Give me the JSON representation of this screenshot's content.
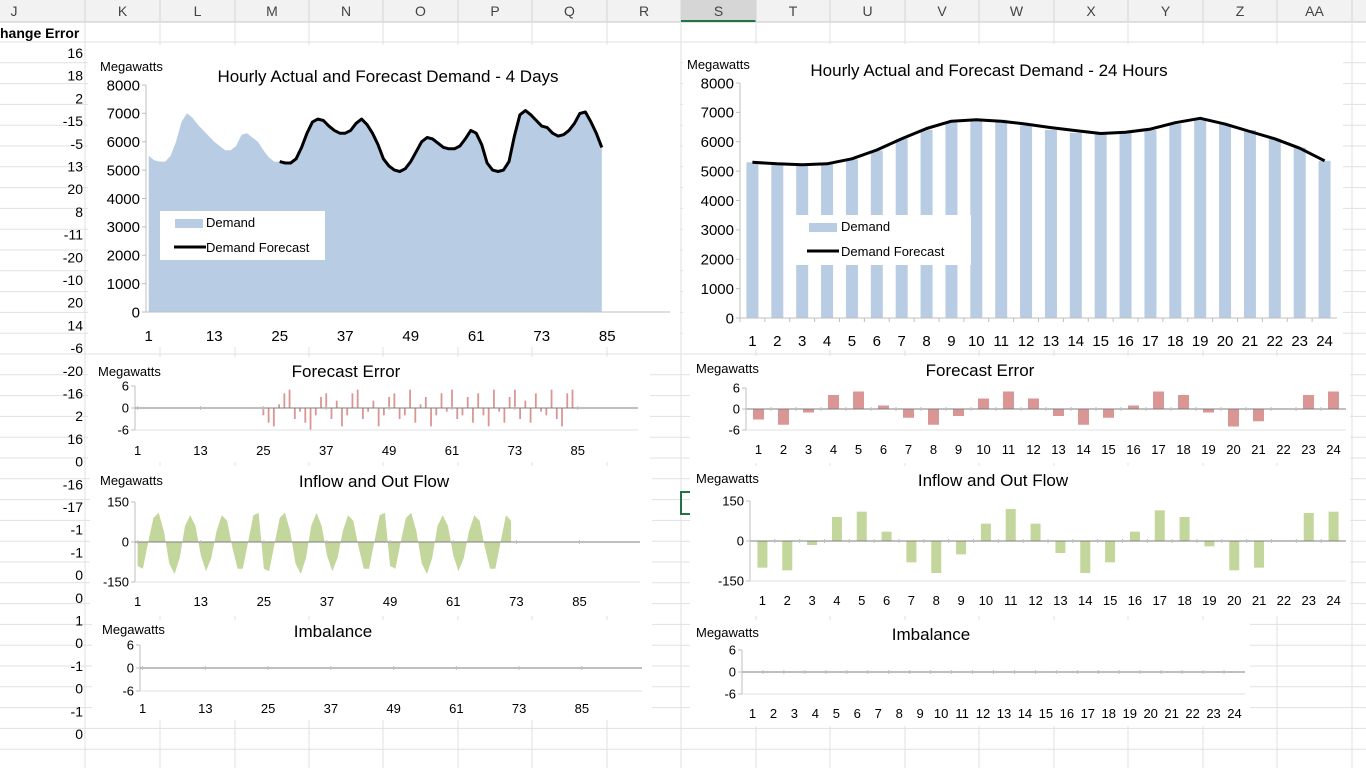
{
  "sheet": {
    "columns": [
      "J",
      "K",
      "L",
      "M",
      "N",
      "O",
      "P",
      "Q",
      "R",
      "S",
      "T",
      "U",
      "V",
      "W",
      "X",
      "Y",
      "Z",
      "AA"
    ],
    "active_column": "S",
    "header_cell": "hange Error",
    "column_values": [
      "16",
      "18",
      "2",
      "-15",
      "-5",
      "13",
      "20",
      "8",
      "-11",
      "-20",
      "-10",
      "20",
      "14",
      "-6",
      "-20",
      "-16",
      "2",
      "16",
      "0",
      "-16",
      "-17",
      "-1",
      "-1",
      "0",
      "0",
      "1",
      "0",
      "-1",
      "0",
      "-1",
      "0"
    ],
    "colors": {
      "grid": "#e1e1e1",
      "header_bg": "#f2f2f2",
      "header_text": "#444444",
      "active_header": "#d6d6d6",
      "active_accent": "#217346"
    }
  },
  "charts": {
    "demand4d": {
      "title": "Hourly Actual and Forecast Demand - 4 Days",
      "unit": "Megawatts",
      "legend": {
        "area": "Demand",
        "line": "Demand Forecast"
      },
      "y_ticks": [
        "8000",
        "7000",
        "6000",
        "5000",
        "4000",
        "3000",
        "2000",
        "1000",
        "0"
      ],
      "x_ticks": [
        "1",
        "13",
        "25",
        "37",
        "49",
        "61",
        "73",
        "85"
      ]
    },
    "demand24": {
      "title": "Hourly Actual and Forecast Demand - 24 Hours",
      "unit": "Megawatts",
      "legend": {
        "bar": "Demand",
        "line": "Demand Forecast"
      },
      "y_ticks": [
        "8000",
        "7000",
        "6000",
        "5000",
        "4000",
        "3000",
        "2000",
        "1000",
        "0"
      ],
      "x_ticks": [
        "1",
        "2",
        "3",
        "4",
        "5",
        "6",
        "7",
        "8",
        "9",
        "10",
        "11",
        "12",
        "13",
        "14",
        "15",
        "16",
        "17",
        "18",
        "19",
        "20",
        "21",
        "22",
        "23",
        "24"
      ]
    },
    "error4d": {
      "title": "Forecast Error",
      "unit": "Megawatts",
      "y_ticks": [
        "6",
        "0",
        "-6"
      ],
      "x_ticks": [
        "1",
        "13",
        "25",
        "37",
        "49",
        "61",
        "73",
        "85"
      ]
    },
    "error24": {
      "title": "Forecast Error",
      "unit": "Megawatts",
      "y_ticks": [
        "6",
        "0",
        "-6"
      ],
      "x_ticks": [
        "1",
        "2",
        "3",
        "4",
        "5",
        "6",
        "7",
        "8",
        "9",
        "10",
        "11",
        "12",
        "13",
        "14",
        "15",
        "16",
        "17",
        "18",
        "19",
        "20",
        "21",
        "22",
        "23",
        "24"
      ]
    },
    "flow4d": {
      "title": "Inflow and Out Flow",
      "unit": "Megawatts",
      "y_ticks": [
        "150",
        "0",
        "-150"
      ],
      "x_ticks": [
        "1",
        "13",
        "25",
        "37",
        "49",
        "61",
        "73",
        "85"
      ]
    },
    "flow24": {
      "title": "Inflow and Out Flow",
      "unit": "Megawatts",
      "y_ticks": [
        "150",
        "0",
        "-150"
      ],
      "x_ticks": [
        "1",
        "2",
        "3",
        "4",
        "5",
        "6",
        "7",
        "8",
        "9",
        "10",
        "11",
        "12",
        "13",
        "14",
        "15",
        "16",
        "17",
        "18",
        "19",
        "20",
        "21",
        "22",
        "23",
        "24"
      ]
    },
    "imb4d": {
      "title": "Imbalance",
      "unit": "Megawatts",
      "y_ticks": [
        "6",
        "0",
        "-6"
      ],
      "x_ticks": [
        "1",
        "13",
        "25",
        "37",
        "49",
        "61",
        "73",
        "85"
      ]
    },
    "imb24": {
      "title": "Imbalance",
      "unit": "Megawatts",
      "y_ticks": [
        "6",
        "0",
        "-6"
      ],
      "x_ticks": [
        "1",
        "2",
        "3",
        "4",
        "5",
        "6",
        "7",
        "8",
        "9",
        "10",
        "11",
        "12",
        "13",
        "14",
        "15",
        "16",
        "17",
        "18",
        "19",
        "20",
        "21",
        "22",
        "23",
        "24"
      ]
    }
  },
  "chart_data": [
    {
      "type": "area",
      "title": "Hourly Actual and Forecast Demand - 4 Days",
      "ylabel": "Megawatts",
      "ylim": [
        0,
        8000
      ],
      "series": [
        {
          "name": "Demand",
          "x_start": 1,
          "values": [
            5500,
            5350,
            5300,
            5300,
            5500,
            6000,
            6700,
            7000,
            6850,
            6600,
            6400,
            6200,
            6000,
            5850,
            5700,
            5700,
            5850,
            6250,
            6300,
            6150,
            6000,
            5700,
            5450,
            5300
          ]
        },
        {
          "name": "Demand Forecast",
          "x_start": 25,
          "values": [
            5300,
            5250,
            5250,
            5400,
            5800,
            6300,
            6700,
            6800,
            6750,
            6550,
            6400,
            6300,
            6300,
            6400,
            6650,
            6800,
            6600,
            6300,
            5900,
            5400,
            5150,
            5000,
            4950,
            5050,
            5300,
            5650,
            6000,
            6150,
            6100,
            5950,
            5800,
            5750,
            5750,
            5850,
            6100,
            6400,
            6300,
            5900,
            5250,
            5000,
            4950,
            5000,
            5300,
            6200,
            6950,
            7100,
            6950,
            6750,
            6550,
            6500,
            6300,
            6200,
            6250,
            6400,
            6650,
            7000,
            7050,
            6700,
            6300,
            5800
          ]
        }
      ],
      "xlim": [
        1,
        96
      ],
      "x_ticks": [
        1,
        13,
        25,
        37,
        49,
        61,
        73,
        85
      ]
    },
    {
      "type": "bar",
      "title": "Hourly Actual and Forecast Demand - 24 Hours",
      "ylabel": "Megawatts",
      "ylim": [
        0,
        8000
      ],
      "categories": [
        "1",
        "2",
        "3",
        "4",
        "5",
        "6",
        "7",
        "8",
        "9",
        "10",
        "11",
        "12",
        "13",
        "14",
        "15",
        "16",
        "17",
        "18",
        "19",
        "20",
        "21",
        "22",
        "23",
        "24"
      ],
      "series": [
        {
          "name": "Demand",
          "values": [
            5300,
            5250,
            5250,
            5250,
            5400,
            5700,
            6100,
            6400,
            6650,
            6750,
            6750,
            6550,
            6400,
            6300,
            6250,
            6300,
            6400,
            6600,
            6750,
            6600,
            6400,
            6100,
            5800,
            5350
          ]
        },
        {
          "name": "Demand Forecast",
          "values": [
            5300,
            5250,
            5220,
            5250,
            5420,
            5720,
            6100,
            6450,
            6700,
            6750,
            6700,
            6600,
            6480,
            6380,
            6280,
            6320,
            6430,
            6650,
            6800,
            6600,
            6350,
            6100,
            5780,
            5350
          ]
        }
      ]
    },
    {
      "type": "bar",
      "title": "Forecast Error",
      "ylabel": "Megawatts",
      "ylim": [
        -6,
        6
      ],
      "xlim": [
        1,
        96
      ],
      "x_ticks": [
        1,
        13,
        25,
        37,
        49,
        61,
        73,
        85
      ],
      "x_start": 25,
      "values": [
        -2,
        -4,
        -5,
        1,
        4,
        5,
        -3,
        -1,
        -4,
        -6,
        -2,
        3,
        4,
        -3,
        2,
        -5,
        -2,
        4,
        5,
        -3,
        -1,
        2,
        -5,
        -2,
        3,
        4,
        -3,
        -2,
        5,
        -4,
        1,
        3,
        -5,
        -2,
        4,
        -1,
        5,
        -3,
        -2,
        3,
        -4,
        4,
        -2,
        -5,
        5,
        -1,
        -4,
        3,
        5,
        -3,
        2,
        -4,
        4,
        -1,
        -2,
        5,
        -3,
        -5,
        4,
        5
      ]
    },
    {
      "type": "bar",
      "title": "Forecast Error",
      "ylabel": "Megawatts",
      "ylim": [
        -6,
        6
      ],
      "categories": [
        "1",
        "2",
        "3",
        "4",
        "5",
        "6",
        "7",
        "8",
        "9",
        "10",
        "11",
        "12",
        "13",
        "14",
        "15",
        "16",
        "17",
        "18",
        "19",
        "20",
        "21",
        "22",
        "23",
        "24"
      ],
      "values": [
        -3,
        -4.5,
        -1,
        4,
        5,
        1,
        -2.5,
        -4.5,
        -2,
        3,
        5,
        3,
        -2,
        -4.5,
        -2.5,
        1,
        5,
        4,
        -1,
        -5,
        -3.5,
        0,
        4,
        5
      ]
    },
    {
      "type": "area",
      "title": "Inflow and Out Flow",
      "ylabel": "Megawatts",
      "ylim": [
        -150,
        150
      ],
      "xlim": [
        1,
        96
      ],
      "x_ticks": [
        1,
        13,
        25,
        37,
        49,
        61,
        73,
        85
      ],
      "x_start": 1,
      "values": [
        -90,
        -100,
        0,
        90,
        110,
        40,
        -80,
        -120,
        -60,
        60,
        100,
        60,
        -50,
        -110,
        -60,
        40,
        100,
        80,
        -20,
        -100,
        -100,
        0,
        100,
        110,
        -100,
        -110,
        -10,
        90,
        110,
        40,
        -80,
        -120,
        -60,
        60,
        110,
        60,
        -50,
        -110,
        -60,
        40,
        100,
        80,
        -20,
        -100,
        -100,
        0,
        100,
        110,
        -90,
        -100,
        0,
        90,
        110,
        40,
        -80,
        -120,
        -60,
        60,
        100,
        60,
        -50,
        -110,
        -60,
        40,
        100,
        80,
        -20,
        -100,
        -100,
        0,
        100,
        80
      ]
    },
    {
      "type": "bar",
      "title": "Inflow and Out Flow",
      "ylabel": "Megawatts",
      "ylim": [
        -150,
        150
      ],
      "categories": [
        "1",
        "2",
        "3",
        "4",
        "5",
        "6",
        "7",
        "8",
        "9",
        "10",
        "11",
        "12",
        "13",
        "14",
        "15",
        "16",
        "17",
        "18",
        "19",
        "20",
        "21",
        "22",
        "23",
        "24"
      ],
      "values": [
        -100,
        -110,
        -15,
        90,
        110,
        35,
        -80,
        -120,
        -50,
        65,
        120,
        65,
        -45,
        -120,
        -80,
        35,
        115,
        90,
        -20,
        -110,
        -100,
        0,
        105,
        110
      ]
    },
    {
      "type": "line",
      "title": "Imbalance",
      "ylabel": "Megawatts",
      "ylim": [
        -6,
        6
      ],
      "xlim": [
        1,
        96
      ],
      "x_ticks": [
        1,
        13,
        25,
        37,
        49,
        61,
        73,
        85
      ],
      "values": [
        0
      ]
    },
    {
      "type": "line",
      "title": "Imbalance",
      "ylabel": "Megawatts",
      "ylim": [
        -6,
        6
      ],
      "categories": [
        "1",
        "2",
        "3",
        "4",
        "5",
        "6",
        "7",
        "8",
        "9",
        "10",
        "11",
        "12",
        "13",
        "14",
        "15",
        "16",
        "17",
        "18",
        "19",
        "20",
        "21",
        "22",
        "23",
        "24"
      ],
      "values": [
        0,
        0,
        0,
        0,
        0,
        0,
        0,
        0,
        0,
        0,
        0,
        0,
        0,
        0,
        0,
        0,
        0,
        0,
        0,
        0,
        0,
        0,
        0,
        0
      ]
    }
  ]
}
